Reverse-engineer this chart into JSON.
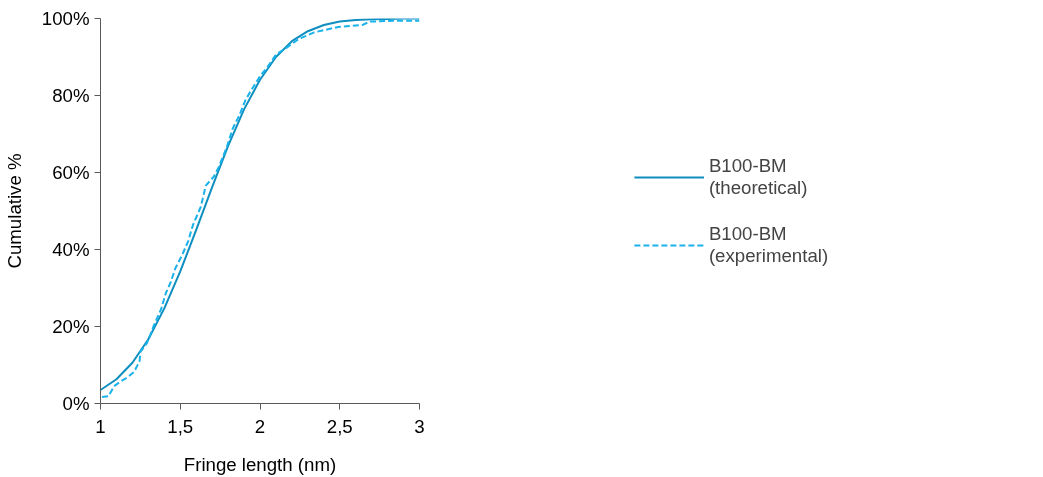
{
  "chart_data": {
    "type": "line",
    "xlabel": "Fringe length (nm)",
    "ylabel": "Cumulative %",
    "xlim": [
      1,
      3
    ],
    "xticks": [
      1,
      {
        "value": 1.5,
        "label": "1,5"
      },
      2,
      {
        "value": 2.5,
        "label": "2,5"
      },
      3
    ],
    "ylim": [
      0,
      100
    ],
    "yticks": [
      {
        "value": 0,
        "label": "0%"
      },
      {
        "value": 20,
        "label": "20%"
      },
      {
        "value": 40,
        "label": "40%"
      },
      {
        "value": 60,
        "label": "60%"
      },
      {
        "value": 80,
        "label": "80%"
      },
      {
        "value": 100,
        "label": "100%"
      }
    ],
    "grid": false,
    "legend": "right",
    "marker": "none",
    "series": [
      {
        "name": "B100-BM (theoretical)",
        "color": "#0e8fbf",
        "line_style": "solid",
        "x": [
          1.0,
          1.1,
          1.2,
          1.3,
          1.4,
          1.5,
          1.6,
          1.7,
          1.8,
          1.9,
          2.0,
          2.1,
          2.2,
          2.3,
          2.4,
          2.5,
          2.6,
          2.7,
          2.8,
          2.9,
          3.0
        ],
        "values": [
          3.5,
          6.3,
          10.6,
          16.7,
          24.7,
          34.3,
          45.1,
          56.2,
          66.9,
          76.4,
          84.1,
          90.0,
          94.1,
          96.7,
          98.3,
          99.2,
          99.6,
          99.8,
          99.9,
          100,
          100
        ]
      },
      {
        "name": "B100-BM (experimental)",
        "color": "#1ab2ea",
        "line_style": "dashed",
        "x": [
          1.01,
          1.05,
          1.085,
          1.125,
          1.17,
          1.21,
          1.245,
          1.25,
          1.29,
          1.31,
          1.33,
          1.355,
          1.38,
          1.41,
          1.44,
          1.47,
          1.51,
          1.55,
          1.58,
          1.63,
          1.66,
          1.71,
          1.74,
          1.79,
          1.83,
          1.87,
          1.91,
          1.95,
          2.0,
          2.045,
          2.1,
          2.17,
          2.23,
          2.25,
          2.34,
          2.49,
          2.64,
          2.69,
          2.84,
          3.0
        ],
        "values": [
          1.7,
          1.9,
          4.5,
          5.7,
          6.8,
          8.2,
          11,
          13.4,
          15.6,
          17.6,
          19.8,
          22.2,
          24.5,
          28.7,
          31.5,
          35.2,
          38.4,
          42.2,
          46.4,
          51.2,
          56.6,
          58.9,
          61.3,
          66.4,
          71.5,
          74.8,
          78.9,
          81.7,
          85,
          87.3,
          90.6,
          92.5,
          94.3,
          94.8,
          96.4,
          97.8,
          98.3,
          99.2,
          99.4,
          99.4
        ]
      }
    ]
  }
}
